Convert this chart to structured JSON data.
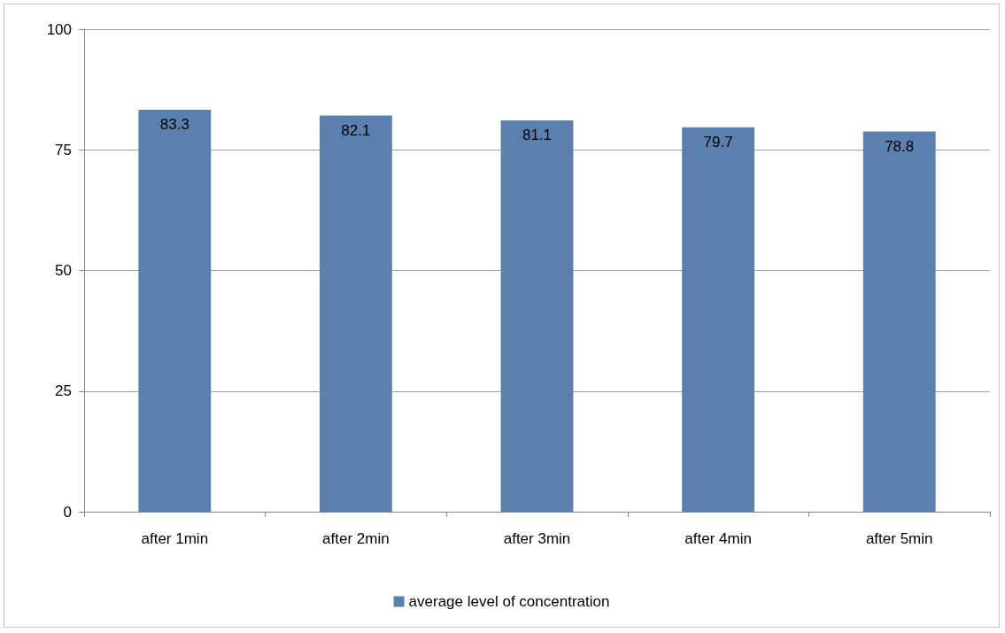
{
  "chart_data": {
    "type": "bar",
    "categories": [
      "after 1min",
      "after 2min",
      "after 3min",
      "after 4min",
      "after 5min"
    ],
    "series": [
      {
        "name": "average level of concentration",
        "color": "#5b80b0",
        "values": [
          83.3,
          82.1,
          81.1,
          79.7,
          78.8
        ]
      }
    ],
    "ylim": [
      0,
      100
    ],
    "yticks": [
      0,
      25,
      50,
      75,
      100
    ],
    "grid": "y",
    "legend": "bottom",
    "data_labels": true
  }
}
